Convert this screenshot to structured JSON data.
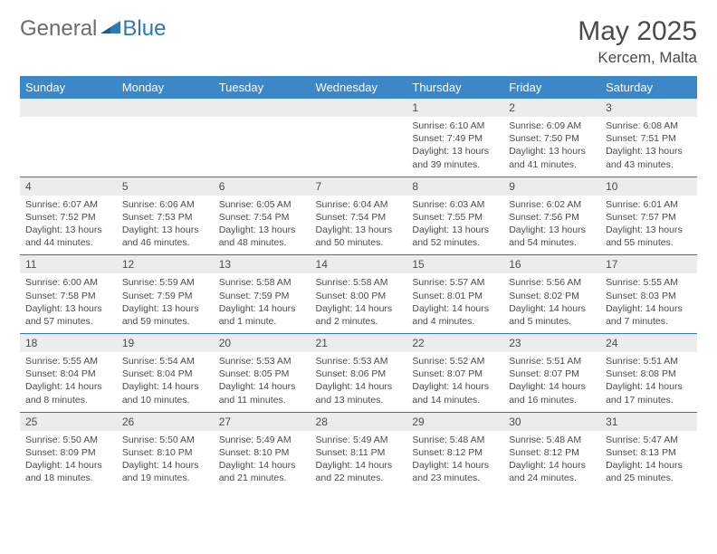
{
  "brand": {
    "general": "General",
    "blue": "Blue"
  },
  "title": "May 2025",
  "location": "Kercem, Malta",
  "colors": {
    "header_bg": "#3b87c8",
    "header_text": "#ffffff",
    "daynum_bg": "#ececec",
    "border": "#2f77b7",
    "text": "#4b4b4b",
    "logo_gray": "#6c6c6c",
    "logo_blue": "#2f77b7",
    "background": "#ffffff"
  },
  "day_headers": [
    "Sunday",
    "Monday",
    "Tuesday",
    "Wednesday",
    "Thursday",
    "Friday",
    "Saturday"
  ],
  "weeks": [
    {
      "nums": [
        "",
        "",
        "",
        "",
        "1",
        "2",
        "3"
      ],
      "cells": [
        {
          "sunrise": "",
          "sunset": "",
          "daylight": ""
        },
        {
          "sunrise": "",
          "sunset": "",
          "daylight": ""
        },
        {
          "sunrise": "",
          "sunset": "",
          "daylight": ""
        },
        {
          "sunrise": "",
          "sunset": "",
          "daylight": ""
        },
        {
          "sunrise": "Sunrise: 6:10 AM",
          "sunset": "Sunset: 7:49 PM",
          "daylight": "Daylight: 13 hours and 39 minutes."
        },
        {
          "sunrise": "Sunrise: 6:09 AM",
          "sunset": "Sunset: 7:50 PM",
          "daylight": "Daylight: 13 hours and 41 minutes."
        },
        {
          "sunrise": "Sunrise: 6:08 AM",
          "sunset": "Sunset: 7:51 PM",
          "daylight": "Daylight: 13 hours and 43 minutes."
        }
      ]
    },
    {
      "nums": [
        "4",
        "5",
        "6",
        "7",
        "8",
        "9",
        "10"
      ],
      "cells": [
        {
          "sunrise": "Sunrise: 6:07 AM",
          "sunset": "Sunset: 7:52 PM",
          "daylight": "Daylight: 13 hours and 44 minutes."
        },
        {
          "sunrise": "Sunrise: 6:06 AM",
          "sunset": "Sunset: 7:53 PM",
          "daylight": "Daylight: 13 hours and 46 minutes."
        },
        {
          "sunrise": "Sunrise: 6:05 AM",
          "sunset": "Sunset: 7:54 PM",
          "daylight": "Daylight: 13 hours and 48 minutes."
        },
        {
          "sunrise": "Sunrise: 6:04 AM",
          "sunset": "Sunset: 7:54 PM",
          "daylight": "Daylight: 13 hours and 50 minutes."
        },
        {
          "sunrise": "Sunrise: 6:03 AM",
          "sunset": "Sunset: 7:55 PM",
          "daylight": "Daylight: 13 hours and 52 minutes."
        },
        {
          "sunrise": "Sunrise: 6:02 AM",
          "sunset": "Sunset: 7:56 PM",
          "daylight": "Daylight: 13 hours and 54 minutes."
        },
        {
          "sunrise": "Sunrise: 6:01 AM",
          "sunset": "Sunset: 7:57 PM",
          "daylight": "Daylight: 13 hours and 55 minutes."
        }
      ]
    },
    {
      "nums": [
        "11",
        "12",
        "13",
        "14",
        "15",
        "16",
        "17"
      ],
      "cells": [
        {
          "sunrise": "Sunrise: 6:00 AM",
          "sunset": "Sunset: 7:58 PM",
          "daylight": "Daylight: 13 hours and 57 minutes."
        },
        {
          "sunrise": "Sunrise: 5:59 AM",
          "sunset": "Sunset: 7:59 PM",
          "daylight": "Daylight: 13 hours and 59 minutes."
        },
        {
          "sunrise": "Sunrise: 5:58 AM",
          "sunset": "Sunset: 7:59 PM",
          "daylight": "Daylight: 14 hours and 1 minute."
        },
        {
          "sunrise": "Sunrise: 5:58 AM",
          "sunset": "Sunset: 8:00 PM",
          "daylight": "Daylight: 14 hours and 2 minutes."
        },
        {
          "sunrise": "Sunrise: 5:57 AM",
          "sunset": "Sunset: 8:01 PM",
          "daylight": "Daylight: 14 hours and 4 minutes."
        },
        {
          "sunrise": "Sunrise: 5:56 AM",
          "sunset": "Sunset: 8:02 PM",
          "daylight": "Daylight: 14 hours and 5 minutes."
        },
        {
          "sunrise": "Sunrise: 5:55 AM",
          "sunset": "Sunset: 8:03 PM",
          "daylight": "Daylight: 14 hours and 7 minutes."
        }
      ]
    },
    {
      "nums": [
        "18",
        "19",
        "20",
        "21",
        "22",
        "23",
        "24"
      ],
      "cells": [
        {
          "sunrise": "Sunrise: 5:55 AM",
          "sunset": "Sunset: 8:04 PM",
          "daylight": "Daylight: 14 hours and 8 minutes."
        },
        {
          "sunrise": "Sunrise: 5:54 AM",
          "sunset": "Sunset: 8:04 PM",
          "daylight": "Daylight: 14 hours and 10 minutes."
        },
        {
          "sunrise": "Sunrise: 5:53 AM",
          "sunset": "Sunset: 8:05 PM",
          "daylight": "Daylight: 14 hours and 11 minutes."
        },
        {
          "sunrise": "Sunrise: 5:53 AM",
          "sunset": "Sunset: 8:06 PM",
          "daylight": "Daylight: 14 hours and 13 minutes."
        },
        {
          "sunrise": "Sunrise: 5:52 AM",
          "sunset": "Sunset: 8:07 PM",
          "daylight": "Daylight: 14 hours and 14 minutes."
        },
        {
          "sunrise": "Sunrise: 5:51 AM",
          "sunset": "Sunset: 8:07 PM",
          "daylight": "Daylight: 14 hours and 16 minutes."
        },
        {
          "sunrise": "Sunrise: 5:51 AM",
          "sunset": "Sunset: 8:08 PM",
          "daylight": "Daylight: 14 hours and 17 minutes."
        }
      ]
    },
    {
      "nums": [
        "25",
        "26",
        "27",
        "28",
        "29",
        "30",
        "31"
      ],
      "cells": [
        {
          "sunrise": "Sunrise: 5:50 AM",
          "sunset": "Sunset: 8:09 PM",
          "daylight": "Daylight: 14 hours and 18 minutes."
        },
        {
          "sunrise": "Sunrise: 5:50 AM",
          "sunset": "Sunset: 8:10 PM",
          "daylight": "Daylight: 14 hours and 19 minutes."
        },
        {
          "sunrise": "Sunrise: 5:49 AM",
          "sunset": "Sunset: 8:10 PM",
          "daylight": "Daylight: 14 hours and 21 minutes."
        },
        {
          "sunrise": "Sunrise: 5:49 AM",
          "sunset": "Sunset: 8:11 PM",
          "daylight": "Daylight: 14 hours and 22 minutes."
        },
        {
          "sunrise": "Sunrise: 5:48 AM",
          "sunset": "Sunset: 8:12 PM",
          "daylight": "Daylight: 14 hours and 23 minutes."
        },
        {
          "sunrise": "Sunrise: 5:48 AM",
          "sunset": "Sunset: 8:12 PM",
          "daylight": "Daylight: 14 hours and 24 minutes."
        },
        {
          "sunrise": "Sunrise: 5:47 AM",
          "sunset": "Sunset: 8:13 PM",
          "daylight": "Daylight: 14 hours and 25 minutes."
        }
      ]
    }
  ]
}
